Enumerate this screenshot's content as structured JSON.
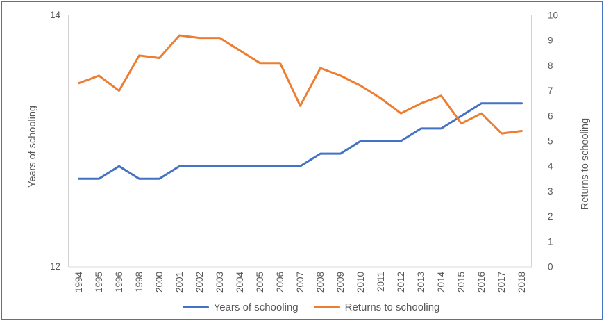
{
  "window": {
    "border_color": "#4472C4",
    "background_color": "#FFFFFF"
  },
  "colors": {
    "series_blue": "#4472C4",
    "series_orange": "#ED7D31",
    "axis_line": "#A6A6A6",
    "baseline": "#D9D9D9",
    "text_gray": "#595959"
  },
  "chart_data": {
    "type": "line",
    "title": "",
    "categories": [
      "1994",
      "1995",
      "1996",
      "1998",
      "2000",
      "2001",
      "2002",
      "2003",
      "2004",
      "2005",
      "2006",
      "2007",
      "2008",
      "2009",
      "2010",
      "2011",
      "2012",
      "2013",
      "2014",
      "2015",
      "2016",
      "2017",
      "2018"
    ],
    "series": [
      {
        "name": "Years of schooling",
        "axis": "left",
        "color": "#4472C4",
        "values": [
          12.7,
          12.7,
          12.8,
          12.7,
          12.7,
          12.8,
          12.8,
          12.8,
          12.8,
          12.8,
          12.8,
          12.8,
          12.9,
          12.9,
          13.0,
          13.0,
          13.0,
          13.1,
          13.1,
          13.2,
          13.3,
          13.3,
          13.3
        ]
      },
      {
        "name": "Returns to schooling",
        "axis": "right",
        "color": "#ED7D31",
        "values": [
          7.3,
          7.6,
          7.0,
          8.4,
          8.3,
          9.2,
          9.1,
          9.1,
          8.6,
          8.1,
          8.1,
          6.4,
          7.9,
          7.6,
          7.2,
          6.7,
          6.1,
          6.5,
          6.8,
          5.7,
          6.1,
          5.3,
          5.4
        ]
      }
    ],
    "left_axis": {
      "title": "Years of schooling",
      "range": [
        12,
        14
      ],
      "tick_values": [
        12,
        14
      ],
      "tick_labels": [
        "12",
        "14"
      ]
    },
    "right_axis": {
      "title": "Returns to schooling",
      "range": [
        0,
        10
      ],
      "tick_values": [
        0,
        1,
        2,
        3,
        4,
        5,
        6,
        7,
        8,
        9,
        10
      ],
      "tick_labels": [
        "0",
        "1",
        "2",
        "3",
        "4",
        "5",
        "6",
        "7",
        "8",
        "9",
        "10"
      ]
    },
    "grid": false,
    "legend_position": "bottom"
  },
  "legend": {
    "items": [
      {
        "label": "Years of schooling",
        "color": "#4472C4"
      },
      {
        "label": "Returns to schooling",
        "color": "#ED7D31"
      }
    ]
  }
}
